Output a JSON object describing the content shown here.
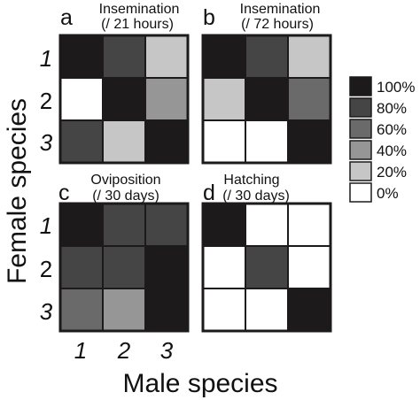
{
  "figure": {
    "ylabel": "Female species",
    "xlabel": "Male species",
    "x_tick_labels": [
      "1",
      "2",
      "3"
    ],
    "y_tick_labels": [
      "1",
      "2",
      "3"
    ]
  },
  "legend": {
    "items": [
      {
        "label": "100%",
        "value": 100
      },
      {
        "label": "80%",
        "value": 80
      },
      {
        "label": "60%",
        "value": 60
      },
      {
        "label": "40%",
        "value": 40
      },
      {
        "label": "20%",
        "value": 20
      },
      {
        "label": "0%",
        "value": 0
      }
    ]
  },
  "chart_data": [
    {
      "type": "heatmap",
      "panel": "a",
      "title_line1": "Insemination",
      "title_line2": "(/ 21 hours)",
      "rows": [
        "1",
        "2",
        "3"
      ],
      "columns": [
        "1",
        "2",
        "3"
      ],
      "values": [
        [
          100,
          80,
          20
        ],
        [
          0,
          100,
          40
        ],
        [
          80,
          20,
          100
        ]
      ]
    },
    {
      "type": "heatmap",
      "panel": "b",
      "title_line1": "Insemination",
      "title_line2": "(/ 72 hours)",
      "rows": [
        "1",
        "2",
        "3"
      ],
      "columns": [
        "1",
        "2",
        "3"
      ],
      "values": [
        [
          100,
          80,
          20
        ],
        [
          20,
          100,
          60
        ],
        [
          0,
          0,
          100
        ]
      ]
    },
    {
      "type": "heatmap",
      "panel": "c",
      "title_line1": "Oviposition",
      "title_line2": "(/ 30 days)",
      "rows": [
        "1",
        "2",
        "3"
      ],
      "columns": [
        "1",
        "2",
        "3"
      ],
      "values": [
        [
          100,
          80,
          80
        ],
        [
          80,
          80,
          100
        ],
        [
          60,
          40,
          100
        ]
      ]
    },
    {
      "type": "heatmap",
      "panel": "d",
      "title_line1": "Hatching",
      "title_line2": "(/ 30 days)",
      "rows": [
        "1",
        "2",
        "3"
      ],
      "columns": [
        "1",
        "2",
        "3"
      ],
      "values": [
        [
          100,
          0,
          0
        ],
        [
          0,
          80,
          0
        ],
        [
          0,
          0,
          100
        ]
      ]
    }
  ],
  "colors": {
    "100": "#1c1a1a",
    "80": "#454545",
    "60": "#6a6a6a",
    "40": "#969696",
    "20": "#c6c6c6",
    "0": "#ffffff"
  }
}
